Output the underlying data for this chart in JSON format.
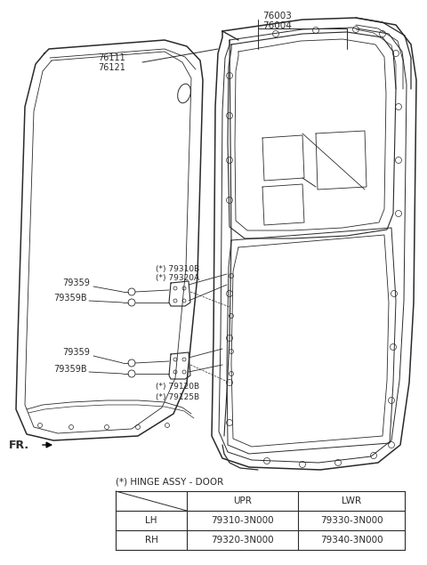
{
  "bg_color": "#ffffff",
  "line_color": "#2a2a2a",
  "text_color": "#2a2a2a",
  "label_76003": "76003",
  "label_76004": "76004",
  "label_76111": "76111",
  "label_76121": "76121",
  "label_79310B": "(*) 79310B",
  "label_79320A": "(*) 79320A",
  "label_79359_upper": "79359",
  "label_79359B_upper": "79359B",
  "label_79359_lower": "79359",
  "label_79359B_lower": "79359B",
  "label_79120B": "(*) 79120B",
  "label_79125B": "(*) 79125B",
  "label_FR": "FR.",
  "table_title": "(*) HINGE ASSY - DOOR",
  "table_headers": [
    "",
    "UPR",
    "LWR"
  ],
  "table_row1": [
    "LH",
    "79310-3N000",
    "79330-3N000"
  ],
  "table_row2": [
    "RH",
    "79320-3N000",
    "79340-3N000"
  ]
}
